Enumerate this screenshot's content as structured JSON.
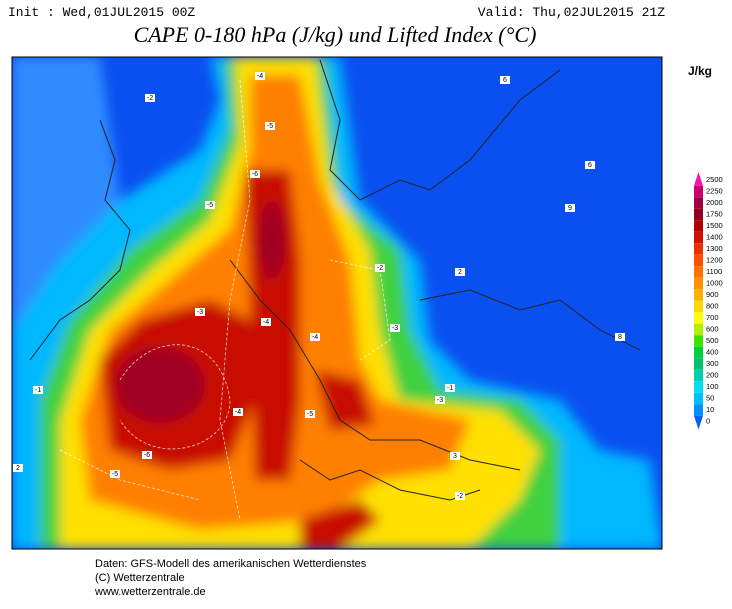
{
  "header": {
    "init": "Init : Wed,01JUL2015 00Z",
    "valid": "Valid: Thu,02JUL2015 21Z",
    "title": "CAPE 0-180 hPa (J/kg) und Lifted Index (°C)"
  },
  "legend": {
    "unit": "J/kg",
    "ticks": [
      2500,
      2250,
      2000,
      1750,
      1500,
      1400,
      1300,
      1200,
      1100,
      1000,
      900,
      800,
      700,
      600,
      500,
      400,
      300,
      200,
      100,
      50,
      10,
      0
    ],
    "colors": [
      "#ff10b0",
      "#d00070",
      "#a00040",
      "#900020",
      "#b00000",
      "#d01000",
      "#e83000",
      "#ff5000",
      "#ff7000",
      "#ff9000",
      "#ffb000",
      "#ffd800",
      "#ffff00",
      "#b0f000",
      "#40e000",
      "#00d040",
      "#00c070",
      "#00d0b0",
      "#00e0f0",
      "#00c0ff",
      "#0090ff",
      "#0060f0"
    ]
  },
  "map": {
    "contour_labels": [
      "-4",
      "-5",
      "-6",
      "-5",
      "-4",
      "-3",
      "-2",
      "-6",
      "-5",
      "-4",
      "-3",
      "-2",
      "-1",
      "-2",
      "-3",
      "-4",
      "-5",
      "-1",
      "2",
      "6",
      "6",
      "9",
      "8",
      "3",
      "2"
    ]
  },
  "footer": {
    "lines": [
      "Daten: GFS-Modell des amerikanischen Wetterdienstes",
      "(C) Wetterzentrale",
      "www.wetterzentrale.de"
    ]
  }
}
